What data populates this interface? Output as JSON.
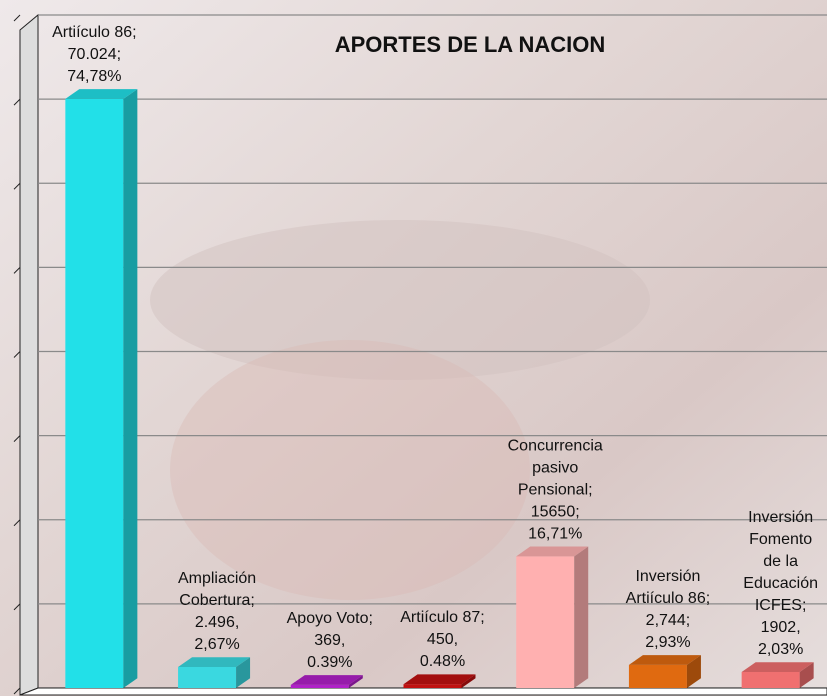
{
  "chart_data": {
    "type": "bar3d",
    "title": "APORTES DE LA NACION",
    "categories": [
      [
        "Artiículo 86"
      ],
      [
        "Ampliación",
        "Cobertura"
      ],
      [
        "Apoyo Voto"
      ],
      [
        "Artiículo 87"
      ],
      [
        "Concurrencia",
        "pasivo",
        "Pensional"
      ],
      [
        "Inversión",
        "Artiículo 86"
      ],
      [
        "Inversión",
        "Fomento",
        "de la",
        "Educación",
        "ICFES"
      ]
    ],
    "values": [
      70024,
      2496,
      369,
      450,
      15650,
      2744,
      1902
    ],
    "value_labels": [
      "70.024",
      "2.496",
      "369",
      "450",
      "15650",
      "2,744",
      "1902"
    ],
    "percentages": [
      74.78,
      2.67,
      0.39,
      0.48,
      16.71,
      2.93,
      2.03
    ],
    "percentage_labels": [
      "74,78%",
      "2,67%",
      "0.39%",
      "0.48%",
      "16,71%",
      "2,93%",
      "2,03%"
    ],
    "separators": [
      [
        ";",
        ";"
      ],
      [
        ";",
        ","
      ],
      [
        ";",
        ","
      ],
      [
        ";",
        ","
      ],
      [
        ";",
        ";"
      ],
      [
        ";",
        ";"
      ],
      [
        ";",
        ","
      ]
    ],
    "colors": [
      "#22e0e8",
      "#3ad8e0",
      "#b020c8",
      "#c01010",
      "#ffb0b0",
      "#e06a10",
      "#f07070"
    ],
    "ylim": [
      0,
      80000
    ],
    "yticks": [
      0,
      10000,
      20000,
      30000,
      40000,
      50000,
      60000,
      70000,
      80000
    ],
    "grid": true
  }
}
